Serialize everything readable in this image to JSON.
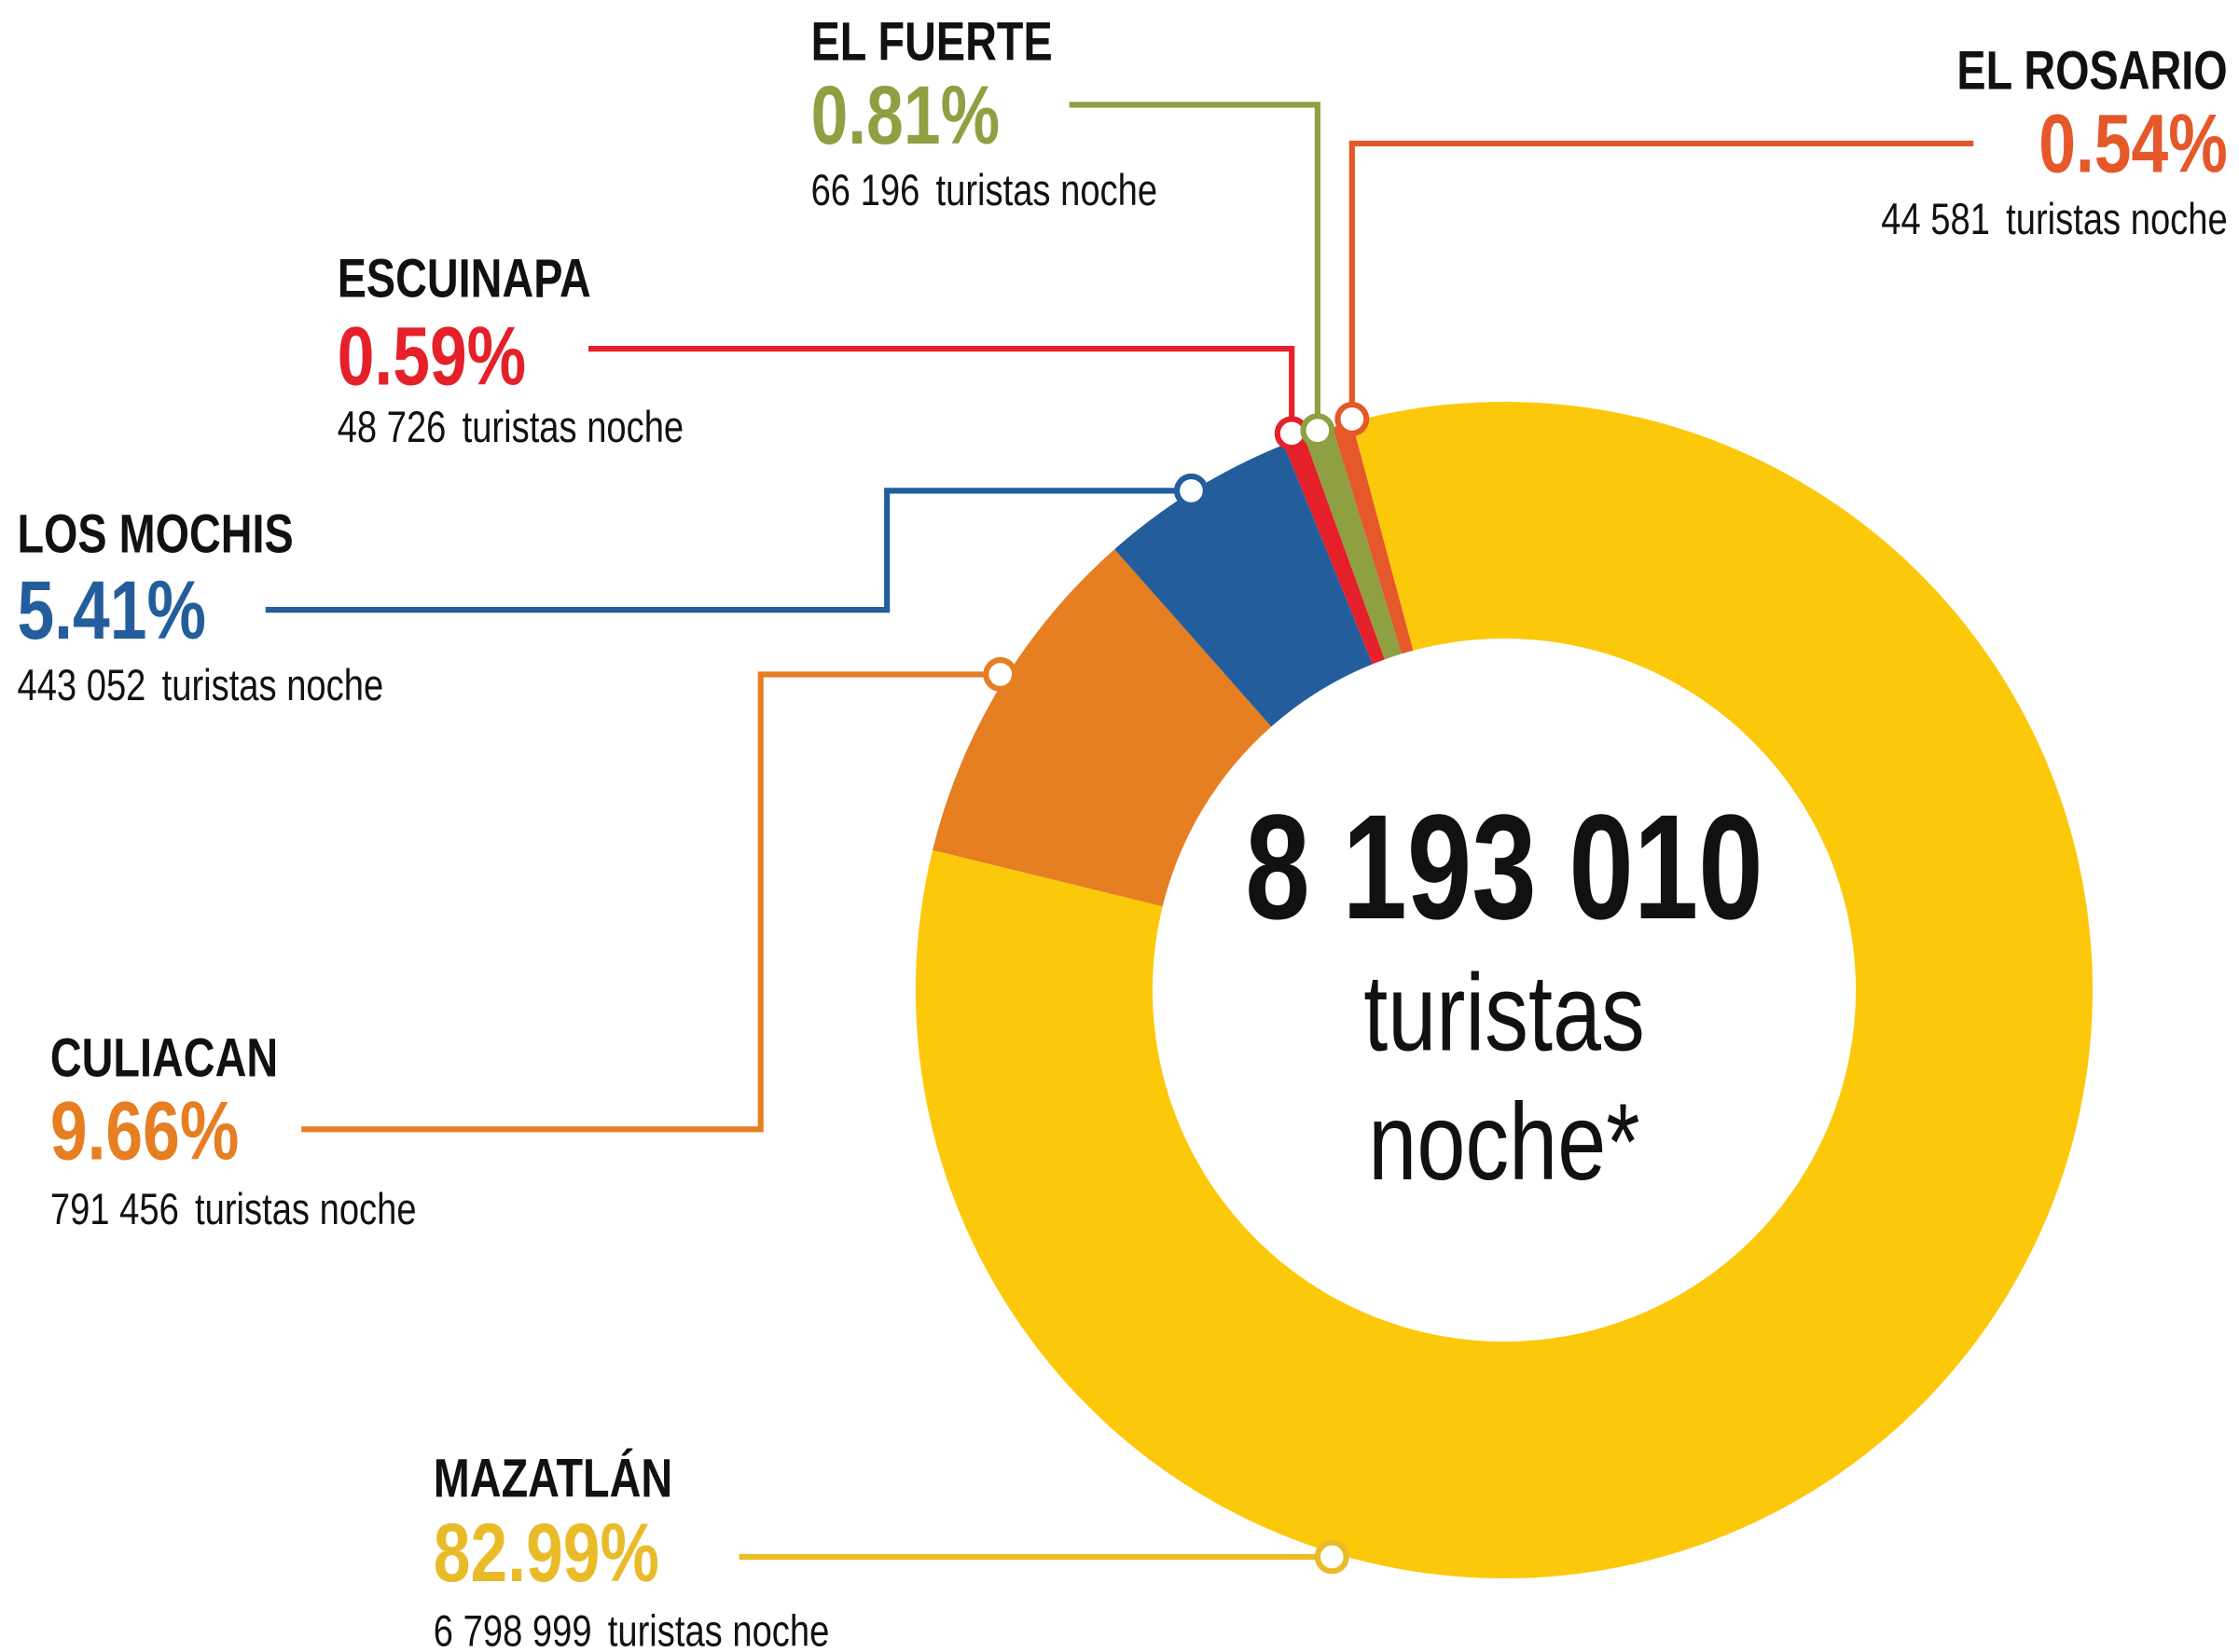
{
  "chart_data": {
    "type": "donut",
    "categories": [
      "MAZATLÁN",
      "CULIACAN",
      "LOS MOCHIS",
      "ESCUINAPA",
      "EL FUERTE",
      "EL ROSARIO"
    ],
    "values": [
      82.99,
      9.66,
      5.41,
      0.59,
      0.81,
      0.54
    ],
    "value_labels": [
      "82.99%",
      "9.66%",
      "5.41%",
      "0.59%",
      "0.81%",
      "0.54%"
    ],
    "counts": [
      6798999,
      791456,
      443052,
      48726,
      66196,
      44581
    ],
    "count_labels": [
      "6 798 999",
      "791 456",
      "443 052",
      "48 726",
      "66 196",
      "44 581"
    ],
    "count_unit": "turistas noche",
    "colors": [
      "#fcc80a",
      "#e67e22",
      "#235d9c",
      "#e5202a",
      "#8ea042",
      "#e4582a"
    ],
    "label_colors": [
      "#e9bb28",
      "#e67e22",
      "#235d9c",
      "#e5202a",
      "#8ea042",
      "#e4582a"
    ],
    "total": 8193010,
    "total_label": "8 193 010",
    "center_lines": [
      "turistas",
      "noche*"
    ]
  }
}
